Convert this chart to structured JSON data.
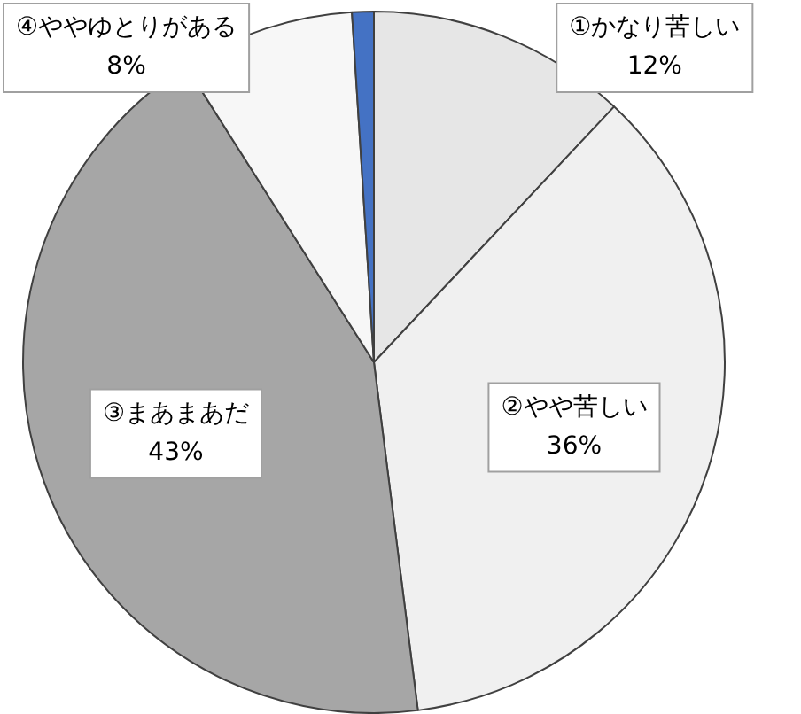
{
  "chart_data": {
    "type": "pie",
    "categories": [
      "①かなり苦しい",
      "②やや苦しい",
      "③まあまあだ",
      "④ややゆとりがある",
      null
    ],
    "values": [
      12,
      36,
      43,
      8,
      1
    ],
    "colors": [
      "#e6e6e6",
      "#f0f0f0",
      "#a6a6a6",
      "#f7f7f7",
      "#4472c4"
    ],
    "value_labels": [
      "12%",
      "36%",
      "43%",
      "8%",
      null
    ],
    "legend": false
  }
}
